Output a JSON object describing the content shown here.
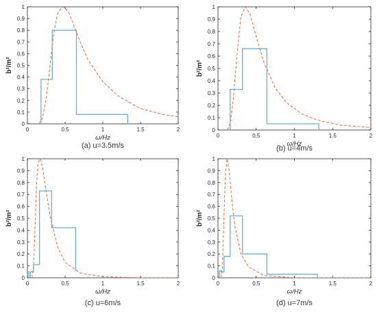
{
  "colors": {
    "step": "#6aaed6",
    "curve": "#e8784a",
    "axis": "#262626"
  },
  "chart_data": [
    {
      "type": "line",
      "caption": "(a) u=3.5m/s",
      "xlabel": "ω/Hz",
      "ylabel": "b²/m²",
      "xlim": [
        0,
        2
      ],
      "ylim": [
        0,
        1
      ],
      "xticks": [
        "0",
        "0.5",
        "1",
        "1.5",
        "2"
      ],
      "yticks": [
        "0",
        "0.1",
        "0.2",
        "0.3",
        "0.4",
        "0.5",
        "0.6",
        "0.7",
        "0.8",
        "0.9",
        "1"
      ],
      "grid": false,
      "series": [
        {
          "kind": "step",
          "x": [
            0.18,
            0.18,
            0.33,
            0.33,
            0.65,
            0.65,
            1.33,
            1.33
          ],
          "y": [
            0,
            0.38,
            0.38,
            0.8,
            0.8,
            0.08,
            0.08,
            0
          ]
        },
        {
          "kind": "dashed-curve",
          "peak_x": 0.48,
          "x": [
            0.15,
            0.2,
            0.25,
            0.3,
            0.35,
            0.4,
            0.45,
            0.48,
            0.55,
            0.65,
            0.8,
            1.0,
            1.2,
            1.5,
            1.8,
            2.0
          ],
          "y": [
            0.0,
            0.05,
            0.22,
            0.5,
            0.78,
            0.94,
            0.99,
            1.0,
            0.95,
            0.78,
            0.55,
            0.36,
            0.24,
            0.13,
            0.08,
            0.06
          ]
        }
      ]
    },
    {
      "type": "line",
      "caption": "(b) u=4m/s",
      "xlabel": "ω/Hz",
      "ylabel": "b²/m²",
      "xlim": [
        0,
        2
      ],
      "ylim": [
        0,
        1
      ],
      "xticks": [
        "0",
        "0.5",
        "1",
        "1.5",
        "2"
      ],
      "yticks": [
        "0",
        "0.1",
        "0.2",
        "0.3",
        "0.4",
        "0.5",
        "0.6",
        "0.7",
        "0.8",
        "0.9",
        "1"
      ],
      "grid": false,
      "series": [
        {
          "kind": "step",
          "x": [
            0.16,
            0.16,
            0.32,
            0.32,
            0.64,
            0.64,
            1.32,
            1.32
          ],
          "y": [
            0,
            0.33,
            0.33,
            0.66,
            0.66,
            0.05,
            0.05,
            0
          ]
        },
        {
          "kind": "dashed-curve",
          "peak_x": 0.36,
          "x": [
            0.12,
            0.16,
            0.2,
            0.25,
            0.3,
            0.36,
            0.42,
            0.5,
            0.6,
            0.75,
            0.9,
            1.1,
            1.3,
            1.6,
            2.0
          ],
          "y": [
            0.0,
            0.05,
            0.25,
            0.62,
            0.92,
            1.0,
            0.94,
            0.76,
            0.55,
            0.34,
            0.22,
            0.13,
            0.08,
            0.04,
            0.02
          ]
        }
      ]
    },
    {
      "type": "line",
      "caption": "(c) u=6m/s",
      "xlabel": "ω/Hz",
      "ylabel": "b²/m²",
      "xlim": [
        0,
        2
      ],
      "ylim": [
        0,
        1
      ],
      "xticks": [
        "0",
        "0.5",
        "1",
        "1.5",
        "2"
      ],
      "yticks": [
        "0",
        "0.1",
        "0.2",
        "0.3",
        "0.4",
        "0.5",
        "0.6",
        "0.7",
        "0.8",
        "0.9",
        "1"
      ],
      "grid": false,
      "series": [
        {
          "kind": "step",
          "x": [
            0,
            0.02,
            0.02,
            0.04,
            0.04,
            0.08,
            0.08,
            0.16,
            0.16,
            0.32,
            0.32,
            0.64,
            0.64
          ],
          "y": [
            0.05,
            0.05,
            0.0,
            0.0,
            0.05,
            0.05,
            0.11,
            0.11,
            0.73,
            0.73,
            0.42,
            0.42,
            0.06
          ]
        },
        {
          "kind": "dashed-curve",
          "peak_x": 0.17,
          "x": [
            0.06,
            0.08,
            0.1,
            0.12,
            0.14,
            0.17,
            0.2,
            0.25,
            0.3,
            0.4,
            0.5,
            0.7,
            1.0,
            1.5,
            2.0
          ],
          "y": [
            0.0,
            0.08,
            0.4,
            0.78,
            0.96,
            1.0,
            0.93,
            0.72,
            0.52,
            0.26,
            0.13,
            0.04,
            0.01,
            0.0,
            0.0
          ]
        }
      ]
    },
    {
      "type": "line",
      "caption": "(d) u=7m/s",
      "xlabel": "ω/Hz",
      "ylabel": "b²/m²",
      "xlim": [
        0,
        2
      ],
      "ylim": [
        0,
        1
      ],
      "xticks": [
        "0",
        "0.5",
        "1",
        "1.5",
        "2"
      ],
      "yticks": [
        "0",
        "0.1",
        "0.2",
        "0.3",
        "0.4",
        "0.5",
        "0.6",
        "0.7",
        "0.8",
        "0.9",
        "1"
      ],
      "grid": false,
      "series": [
        {
          "kind": "step",
          "x": [
            0.02,
            0.02,
            0.04,
            0.04,
            0.08,
            0.08,
            0.16,
            0.16,
            0.32,
            0.32,
            0.64,
            0.64,
            1.3,
            1.3
          ],
          "y": [
            0.0,
            0.06,
            0.06,
            0.05,
            0.05,
            0.18,
            0.18,
            0.52,
            0.52,
            0.2,
            0.2,
            0.03,
            0.03,
            0.0
          ]
        },
        {
          "kind": "dashed-curve",
          "peak_x": 0.12,
          "x": [
            0.04,
            0.06,
            0.08,
            0.1,
            0.12,
            0.15,
            0.18,
            0.22,
            0.3,
            0.4,
            0.6,
            0.8,
            1.0,
            1.5,
            2.0
          ],
          "y": [
            0.0,
            0.1,
            0.55,
            0.9,
            1.0,
            0.88,
            0.66,
            0.44,
            0.2,
            0.09,
            0.02,
            0.01,
            0.0,
            0.0,
            0.0
          ]
        }
      ]
    }
  ]
}
